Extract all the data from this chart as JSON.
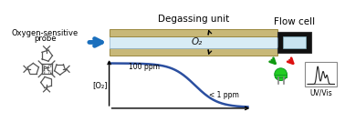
{
  "title_degassing": "Degassing unit",
  "title_flowcell": "Flow cell",
  "title_probe": "Oxygen-sensitive\nprobe",
  "label_o2": "O₂",
  "label_o2_axis": "[O₂]",
  "label_100ppm": "100 ppm",
  "label_1ppm": "< 1 ppm",
  "label_uvvis": "UV/Vis",
  "curve_color": "#2b4fa0",
  "arrow_blue_color": "#1a6fbd",
  "degassing_outer_color": "#c8b878",
  "degassing_outer_edge": "#9a8840",
  "degassing_inner_color": "#d8ecf5",
  "degassing_inner_edge": "#8ab0cc",
  "flowcell_outer_color": "#111111",
  "flowcell_inner_color": "#c8e4f0",
  "green_led_color": "#22cc22",
  "red_arrow_color": "#dd1111",
  "green_arrow_color": "#119911",
  "bg_color": "#ffffff",
  "text_color": "#000000",
  "mol_color": "#555555",
  "fontsize_main": 7.5,
  "fontsize_label": 6.5
}
